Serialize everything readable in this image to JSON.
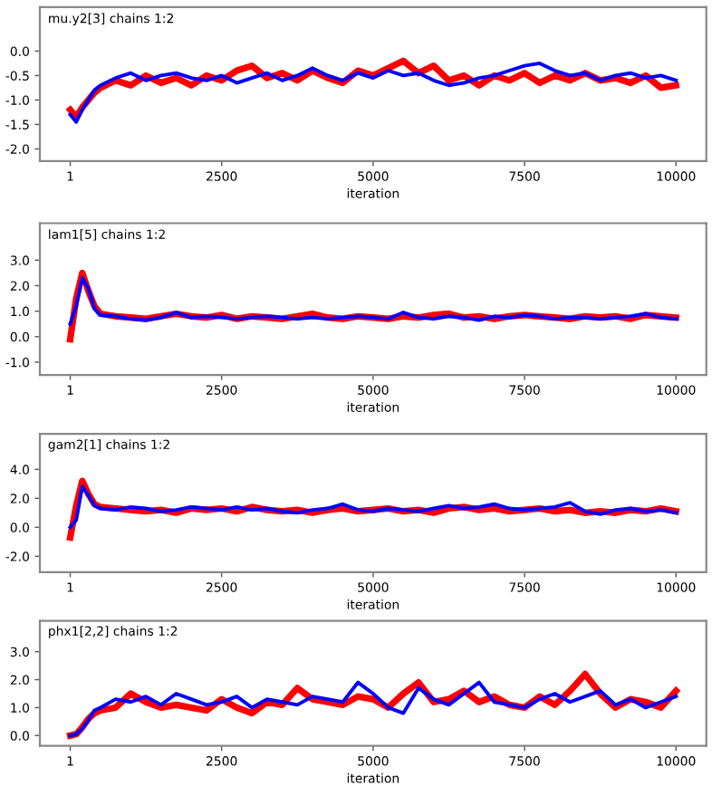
{
  "chart_data": [
    {
      "type": "line",
      "title": "mu.y2[3] chains 1:2",
      "xlabel": "iteration",
      "xlim": [
        -500,
        10500
      ],
      "xticks": [
        1,
        2500,
        5000,
        7500,
        10000
      ],
      "ylim": [
        -2.25,
        0.9
      ],
      "yticks": [
        {
          "value": -2,
          "label": "-2.0"
        },
        {
          "value": -1.5,
          "label": "-1.5"
        },
        {
          "value": -1,
          "label": "-1.0"
        },
        {
          "value": -0.5,
          "label": "-0.5"
        },
        {
          "value": 0,
          "label": "0.0"
        }
      ],
      "x": [
        1,
        100,
        200,
        300,
        400,
        500,
        750,
        1000,
        1250,
        1500,
        1750,
        2000,
        2250,
        2500,
        2750,
        3000,
        3250,
        3500,
        3750,
        4000,
        4250,
        4500,
        4750,
        5000,
        5250,
        5500,
        5750,
        6000,
        6250,
        6500,
        6750,
        7000,
        7250,
        7500,
        7750,
        8000,
        8250,
        8500,
        8750,
        9000,
        9250,
        9500,
        9750,
        10000
      ],
      "series": [
        {
          "color": "#ff0000",
          "values": [
            -1.2,
            -1.35,
            -1.15,
            -1.0,
            -0.85,
            -0.75,
            -0.6,
            -0.7,
            -0.5,
            -0.65,
            -0.55,
            -0.7,
            -0.5,
            -0.6,
            -0.4,
            -0.3,
            -0.55,
            -0.45,
            -0.6,
            -0.4,
            -0.55,
            -0.65,
            -0.4,
            -0.5,
            -0.35,
            -0.2,
            -0.45,
            -0.3,
            -0.6,
            -0.5,
            -0.7,
            -0.5,
            -0.6,
            -0.45,
            -0.65,
            -0.5,
            -0.6,
            -0.45,
            -0.6,
            -0.55,
            -0.65,
            -0.5,
            -0.75,
            -0.7
          ]
        },
        {
          "color": "#0000ff",
          "values": [
            -1.3,
            -1.45,
            -1.2,
            -1.0,
            -0.8,
            -0.7,
            -0.55,
            -0.45,
            -0.6,
            -0.5,
            -0.45,
            -0.55,
            -0.6,
            -0.5,
            -0.65,
            -0.55,
            -0.45,
            -0.6,
            -0.5,
            -0.35,
            -0.5,
            -0.6,
            -0.45,
            -0.55,
            -0.4,
            -0.5,
            -0.45,
            -0.6,
            -0.7,
            -0.65,
            -0.55,
            -0.5,
            -0.4,
            -0.3,
            -0.25,
            -0.4,
            -0.5,
            -0.45,
            -0.6,
            -0.5,
            -0.45,
            -0.55,
            -0.5,
            -0.6
          ]
        }
      ]
    },
    {
      "type": "line",
      "title": "lam1[5] chains 1:2",
      "xlabel": "iteration",
      "xlim": [
        -500,
        10500
      ],
      "xticks": [
        1,
        2500,
        5000,
        7500,
        10000
      ],
      "ylim": [
        -1.5,
        4.45
      ],
      "yticks": [
        {
          "value": -1,
          "label": "-1.0"
        },
        {
          "value": 0,
          "label": "0.0"
        },
        {
          "value": 1,
          "label": "1.0"
        },
        {
          "value": 2,
          "label": "2.0"
        },
        {
          "value": 3,
          "label": "3.0"
        }
      ],
      "x": [
        1,
        100,
        200,
        300,
        400,
        500,
        750,
        1000,
        1250,
        1500,
        1750,
        2000,
        2250,
        2500,
        2750,
        3000,
        3250,
        3500,
        3750,
        4000,
        4250,
        4500,
        4750,
        5000,
        5250,
        5500,
        5750,
        6000,
        6250,
        6500,
        6750,
        7000,
        7250,
        7500,
        7750,
        8000,
        8250,
        8500,
        8750,
        9000,
        9250,
        9500,
        9750,
        10000
      ],
      "series": [
        {
          "color": "#ff0000",
          "values": [
            -0.1,
            1.5,
            2.5,
            1.8,
            1.2,
            0.9,
            0.8,
            0.75,
            0.7,
            0.8,
            0.9,
            0.8,
            0.75,
            0.85,
            0.7,
            0.8,
            0.75,
            0.7,
            0.8,
            0.9,
            0.75,
            0.7,
            0.8,
            0.75,
            0.7,
            0.8,
            0.75,
            0.85,
            0.9,
            0.75,
            0.8,
            0.7,
            0.8,
            0.85,
            0.8,
            0.75,
            0.7,
            0.8,
            0.75,
            0.8,
            0.7,
            0.85,
            0.8,
            0.75
          ]
        },
        {
          "color": "#0000ff",
          "values": [
            0.5,
            1.2,
            2.3,
            1.9,
            1.1,
            0.85,
            0.8,
            0.7,
            0.65,
            0.75,
            0.95,
            0.75,
            0.8,
            0.75,
            0.7,
            0.75,
            0.8,
            0.75,
            0.7,
            0.75,
            0.7,
            0.75,
            0.8,
            0.75,
            0.7,
            0.95,
            0.75,
            0.7,
            0.8,
            0.75,
            0.65,
            0.8,
            0.75,
            0.85,
            0.8,
            0.7,
            0.75,
            0.75,
            0.7,
            0.75,
            0.8,
            0.9,
            0.75,
            0.7
          ]
        }
      ]
    },
    {
      "type": "line",
      "title": "gam2[1] chains 1:2",
      "xlabel": "iteration",
      "xlim": [
        -500,
        10500
      ],
      "xticks": [
        1,
        2500,
        5000,
        7500,
        10000
      ],
      "ylim": [
        -3.1,
        6.45
      ],
      "yticks": [
        {
          "value": -2,
          "label": "-2.0"
        },
        {
          "value": 0,
          "label": "0.0"
        },
        {
          "value": 2,
          "label": "2.0"
        },
        {
          "value": 4,
          "label": "4.0"
        }
      ],
      "x": [
        1,
        100,
        200,
        300,
        400,
        500,
        750,
        1000,
        1250,
        1500,
        1750,
        2000,
        2250,
        2500,
        2750,
        3000,
        3250,
        3500,
        3750,
        4000,
        4250,
        4500,
        4750,
        5000,
        5250,
        5500,
        5750,
        6000,
        6250,
        6500,
        6750,
        7000,
        7250,
        7500,
        7750,
        8000,
        8250,
        8500,
        8750,
        9000,
        9250,
        9500,
        9750,
        10000
      ],
      "series": [
        {
          "color": "#ff0000",
          "values": [
            -0.7,
            1.5,
            3.2,
            2.3,
            1.6,
            1.4,
            1.3,
            1.2,
            1.1,
            1.2,
            1.0,
            1.3,
            1.2,
            1.3,
            1.1,
            1.4,
            1.2,
            1.1,
            1.2,
            1.0,
            1.2,
            1.3,
            1.1,
            1.2,
            1.3,
            1.1,
            1.2,
            1.0,
            1.3,
            1.4,
            1.2,
            1.3,
            1.1,
            1.2,
            1.3,
            1.1,
            1.2,
            1.0,
            1.1,
            1.0,
            1.2,
            1.1,
            1.3,
            1.1
          ]
        },
        {
          "color": "#0000ff",
          "values": [
            0.0,
            0.5,
            2.8,
            2.2,
            1.5,
            1.3,
            1.2,
            1.4,
            1.3,
            1.1,
            1.2,
            1.4,
            1.3,
            1.2,
            1.4,
            1.2,
            1.3,
            1.1,
            1.0,
            1.2,
            1.3,
            1.6,
            1.2,
            1.1,
            1.3,
            1.2,
            1.1,
            1.3,
            1.5,
            1.3,
            1.4,
            1.6,
            1.3,
            1.2,
            1.3,
            1.4,
            1.7,
            1.1,
            0.9,
            1.2,
            1.3,
            1.1,
            1.2,
            1.0
          ]
        }
      ]
    },
    {
      "type": "line",
      "title": "phx1[2,2] chains 1:2",
      "xlabel": "iteration",
      "xlim": [
        -500,
        10500
      ],
      "xticks": [
        1,
        2500,
        5000,
        7500,
        10000
      ],
      "ylim": [
        -0.37,
        4.1
      ],
      "yticks": [
        {
          "value": 0,
          "label": "0.0"
        },
        {
          "value": 1,
          "label": "1.0"
        },
        {
          "value": 2,
          "label": "2.0"
        },
        {
          "value": 3,
          "label": "3.0"
        }
      ],
      "x": [
        1,
        100,
        200,
        300,
        400,
        500,
        750,
        1000,
        1250,
        1500,
        1750,
        2000,
        2250,
        2500,
        2750,
        3000,
        3250,
        3500,
        3750,
        4000,
        4250,
        4500,
        4750,
        5000,
        5250,
        5500,
        5750,
        6000,
        6250,
        6500,
        6750,
        7000,
        7250,
        7500,
        7750,
        8000,
        8250,
        8500,
        8750,
        9000,
        9250,
        9500,
        9750,
        10000
      ],
      "series": [
        {
          "color": "#ff0000",
          "values": [
            0.0,
            0.05,
            0.3,
            0.6,
            0.8,
            0.9,
            1.0,
            1.5,
            1.2,
            1.0,
            1.1,
            1.0,
            0.9,
            1.3,
            1.0,
            0.8,
            1.2,
            1.1,
            1.7,
            1.3,
            1.2,
            1.1,
            1.4,
            1.3,
            1.0,
            1.5,
            1.9,
            1.2,
            1.3,
            1.6,
            1.2,
            1.4,
            1.1,
            1.0,
            1.4,
            1.1,
            1.6,
            2.2,
            1.5,
            1.0,
            1.3,
            1.2,
            1.0,
            1.6
          ]
        },
        {
          "color": "#0000ff",
          "values": [
            0.0,
            0.05,
            0.25,
            0.55,
            0.9,
            1.0,
            1.3,
            1.2,
            1.4,
            1.1,
            1.5,
            1.3,
            1.1,
            1.2,
            1.4,
            1.0,
            1.3,
            1.2,
            1.1,
            1.4,
            1.3,
            1.2,
            1.9,
            1.5,
            1.0,
            0.8,
            1.7,
            1.3,
            1.1,
            1.5,
            1.9,
            1.2,
            1.1,
            1.0,
            1.3,
            1.5,
            1.2,
            1.4,
            1.6,
            1.1,
            1.3,
            1.0,
            1.2,
            1.4
          ]
        }
      ]
    }
  ]
}
